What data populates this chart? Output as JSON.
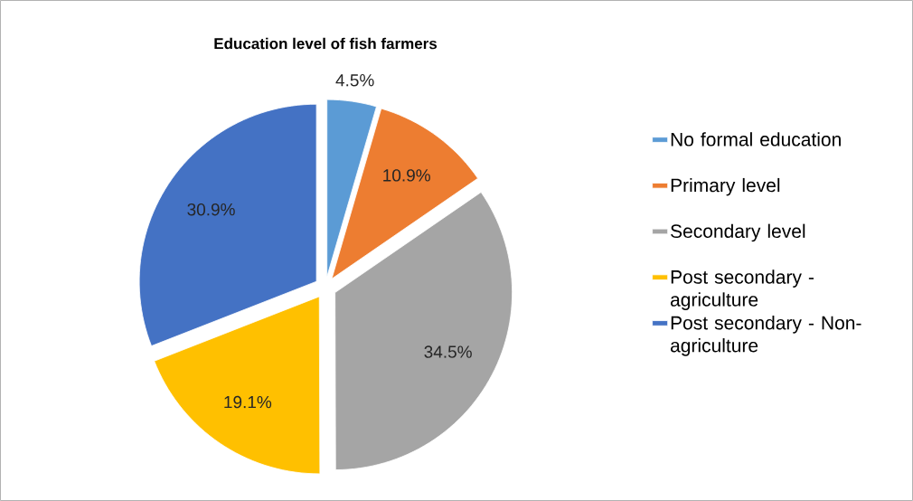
{
  "chart_data": {
    "type": "pie",
    "title": "Education level of fish farmers",
    "categories": [
      "No formal education",
      "Primary level",
      "Secondary level",
      "Post secondary - agriculture",
      "Post secondary - Non-agriculture"
    ],
    "values": [
      4.5,
      10.9,
      34.5,
      19.1,
      30.9
    ],
    "colors": [
      "#5b9bd5",
      "#ed7d31",
      "#a5a5a5",
      "#ffc000",
      "#4472c4"
    ],
    "value_labels": [
      "4.5%",
      "10.9%",
      "34.5%",
      "19.1%",
      "30.9%"
    ],
    "legend": "right"
  }
}
